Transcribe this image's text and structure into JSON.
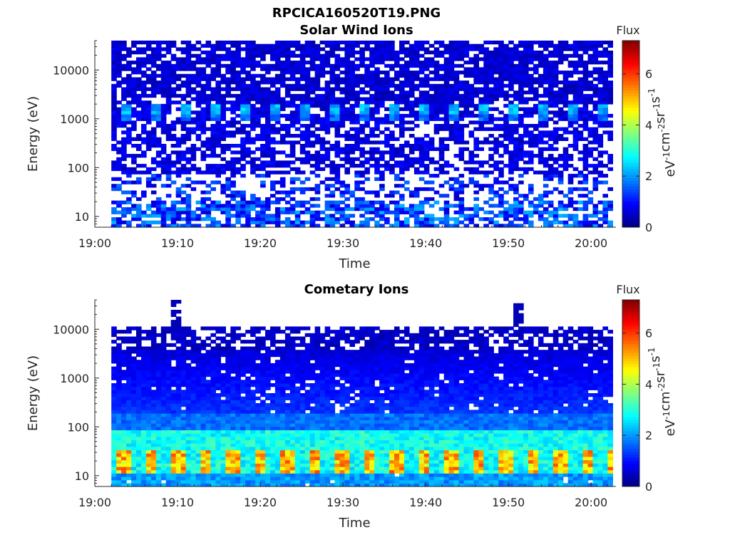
{
  "figure_title": "RPCICA160520T19.PNG",
  "chart_data": [
    {
      "type": "heatmap",
      "title": "Solar Wind Ions",
      "xlabel": "Time",
      "ylabel": "Energy (eV)",
      "x_ticks": [
        "19:00",
        "19:10",
        "19:20",
        "19:30",
        "19:40",
        "19:50",
        "20:00"
      ],
      "x_range": [
        "19:00",
        "20:03"
      ],
      "data_time_range": [
        "19:02",
        "20:02"
      ],
      "y_scale": "log",
      "y_ticks": [
        "10",
        "100",
        "1000",
        "10000"
      ],
      "y_range": [
        6,
        40000
      ],
      "colorbar": {
        "title": "Flux",
        "label": "eV-1cm-2sr-1s-1",
        "ticks": [
          "0",
          "2",
          "4",
          "6"
        ],
        "range": [
          0,
          7.3
        ],
        "colormap": "jet"
      },
      "features": [
        {
          "description_energy": "~1000-2000 eV",
          "value_range": [
            1.5,
            2.5
          ],
          "pattern": "periodic beams"
        },
        {
          "description_energy": "~6-20 eV",
          "value_range": [
            0.5,
            2.0
          ],
          "pattern": "intermittent"
        }
      ],
      "background_value": 0.6
    },
    {
      "type": "heatmap",
      "title": "Cometary Ions",
      "xlabel": "Time",
      "ylabel": "Energy (eV)",
      "x_ticks": [
        "19:00",
        "19:10",
        "19:20",
        "19:30",
        "19:40",
        "19:50",
        "20:00"
      ],
      "x_range": [
        "19:00",
        "20:03"
      ],
      "data_time_range": [
        "19:02",
        "20:02"
      ],
      "y_scale": "log",
      "y_ticks": [
        "10",
        "100",
        "1000",
        "10000"
      ],
      "y_range": [
        6,
        40000
      ],
      "colorbar": {
        "title": "Flux",
        "label": "eV-1cm-2sr-1s-1",
        "ticks": [
          "0",
          "2",
          "4",
          "6"
        ],
        "range": [
          0,
          7.3
        ],
        "colormap": "jet"
      },
      "features": [
        {
          "description_energy": "~15-30 eV",
          "value_range": [
            4.0,
            6.0
          ],
          "pattern": "periodic"
        },
        {
          "description_energy": "~40-80 eV",
          "value_range": [
            2.5,
            3.5
          ],
          "pattern": "continuous"
        }
      ],
      "background_value": 1.0
    }
  ]
}
